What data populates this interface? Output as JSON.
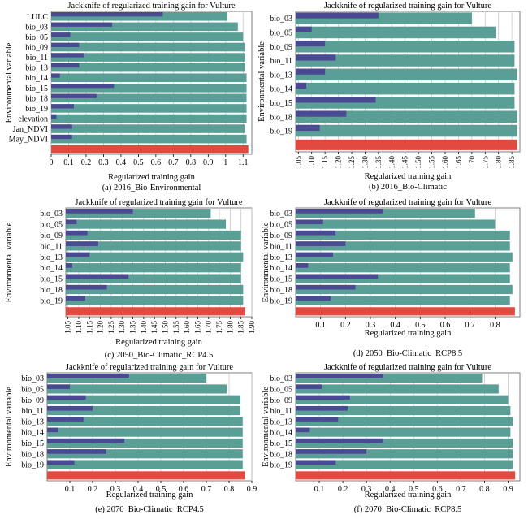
{
  "colors": {
    "without": "#4a4a92",
    "only": "#5a9f95",
    "all": "#e24a3f",
    "grid": "#c8c8c8",
    "frame": "#7f7f7f"
  },
  "chart_data": [
    {
      "type": "bar",
      "title": "Jackknife of regularized training gain for Vulture",
      "xlabel": "Regularized training gain",
      "ylabel": "Environmental variable",
      "caption": "(a) 2016_Bio-Environmental",
      "categories": [
        "LULC",
        "bio_03",
        "bio_05",
        "bio_09",
        "bio_11",
        "bio_13",
        "bio_14",
        "bio_15",
        "bio_18",
        "bio_19",
        "elevation",
        "Jan_NDVI",
        "May_NDVI"
      ],
      "xlim": [
        0,
        1.15
      ],
      "ticks": [
        0,
        0.1,
        0.2,
        0.3,
        0.4,
        0.5,
        0.6,
        0.7,
        0.8,
        0.9,
        1,
        1.1
      ],
      "tick_labels": [
        "0",
        "0.1",
        "0.2",
        "0.3",
        "0.4",
        "0.5",
        "0.6",
        "0.7",
        "0.8",
        "0.9",
        "1",
        "1.1"
      ],
      "rotate_ticks": false,
      "grid": true,
      "series": [
        {
          "key": "only",
          "values": [
            1.01,
            1.07,
            1.1,
            1.11,
            1.11,
            1.11,
            1.12,
            1.12,
            1.12,
            1.12,
            1.12,
            1.11,
            1.12
          ]
        },
        {
          "key": "without",
          "values": [
            0.64,
            0.35,
            0.11,
            0.16,
            0.19,
            0.16,
            0.05,
            0.36,
            0.26,
            0.13,
            0.03,
            0.12,
            0.12
          ]
        }
      ],
      "all": 1.13
    },
    {
      "type": "bar",
      "title": "Jackknife of regularized training gain for Vulture",
      "xlabel": "Regularized training gain",
      "ylabel": "Environmental variable",
      "caption": "(b) 2016_Bio-Climatic",
      "categories": [
        "bio_03",
        "bio_05",
        "bio_09",
        "bio_11",
        "bio_13",
        "bio_14",
        "bio_15",
        "bio_18",
        "bio_19"
      ],
      "xlim": [
        1.04,
        1.88
      ],
      "ticks": [
        1.05,
        1.1,
        1.15,
        1.2,
        1.25,
        1.3,
        1.35,
        1.4,
        1.45,
        1.5,
        1.55,
        1.6,
        1.65,
        1.7,
        1.75,
        1.8,
        1.85
      ],
      "tick_labels": [
        "1.05",
        "1.10",
        "1.15",
        "1.20",
        "1.25",
        "1.30",
        "1.35",
        "1.40",
        "1.45",
        "1.50",
        "1.55",
        "1.60",
        "1.65",
        "1.70",
        "1.75",
        "1.80",
        "1.85"
      ],
      "rotate_ticks": true,
      "grid": true,
      "series": [
        {
          "key": "only",
          "values": [
            1.7,
            1.79,
            1.86,
            1.86,
            1.87,
            1.86,
            1.86,
            1.87,
            1.87
          ]
        },
        {
          "key": "without",
          "values": [
            1.35,
            1.1,
            1.15,
            1.19,
            1.15,
            1.08,
            1.34,
            1.23,
            1.13
          ]
        }
      ],
      "all": 1.87
    },
    {
      "type": "bar",
      "title": "Jackknife of regularized training gain for Vulture",
      "xlabel": "Regularized training gain",
      "ylabel": "Environmental variable",
      "caption": "(c) 2050_Bio-Climatic_RCP4.5",
      "categories": [
        "bio_03",
        "bio_05",
        "bio_09",
        "bio_11",
        "bio_13",
        "bio_14",
        "bio_15",
        "bio_18",
        "bio_19"
      ],
      "xlim": [
        1.04,
        1.9
      ],
      "ticks": [
        1.05,
        1.1,
        1.15,
        1.2,
        1.25,
        1.3,
        1.35,
        1.4,
        1.45,
        1.5,
        1.55,
        1.6,
        1.65,
        1.7,
        1.75,
        1.8,
        1.85,
        1.9
      ],
      "tick_labels": [
        "1.05",
        "1.10",
        "1.15",
        "1.20",
        "1.25",
        "1.30",
        "1.35",
        "1.40",
        "1.45",
        "1.50",
        "1.55",
        "1.60",
        "1.65",
        "1.70",
        "1.75",
        "1.80",
        "1.85",
        "1.90"
      ],
      "rotate_ticks": true,
      "grid": true,
      "series": [
        {
          "key": "only",
          "values": [
            1.71,
            1.78,
            1.85,
            1.85,
            1.86,
            1.85,
            1.85,
            1.86,
            1.86
          ]
        },
        {
          "key": "without",
          "values": [
            1.35,
            1.09,
            1.14,
            1.19,
            1.15,
            1.07,
            1.33,
            1.23,
            1.13
          ]
        }
      ],
      "all": 1.87
    },
    {
      "type": "bar",
      "title": "Jackknife of regularized training gain for Vulture",
      "xlabel": "Regularized training gain",
      "ylabel": "Environmental variable",
      "caption": "(d) 2050_Bio-Climatic_RCP8.5",
      "categories": [
        "bio_03",
        "bio_05",
        "bio_09",
        "bio_11",
        "bio_13",
        "bio_14",
        "bio_15",
        "bio_18",
        "bio_19"
      ],
      "xlim": [
        0,
        0.9
      ],
      "ticks": [
        0.1,
        0.2,
        0.3,
        0.4,
        0.5,
        0.6,
        0.7,
        0.8
      ],
      "tick_labels": [
        "0.1",
        "0.2",
        "0.3",
        "0.4",
        "0.5",
        "0.6",
        "0.7",
        "0.8"
      ],
      "rotate_ticks": false,
      "grid": true,
      "series": [
        {
          "key": "only",
          "values": [
            0.72,
            0.8,
            0.86,
            0.86,
            0.87,
            0.86,
            0.86,
            0.87,
            0.86
          ]
        },
        {
          "key": "without",
          "values": [
            0.35,
            0.11,
            0.16,
            0.2,
            0.15,
            0.05,
            0.33,
            0.24,
            0.14
          ]
        }
      ],
      "all": 0.88
    },
    {
      "type": "bar",
      "title": "Jackknife of regularized training gain for Vulture",
      "xlabel": "Regularized training gain",
      "ylabel": "Environmental variable",
      "caption": "(e) 2070_Bio-Climatic_RCP4.5",
      "categories": [
        "bio_03",
        "bio_05",
        "bio_09",
        "bio_11",
        "bio_13",
        "bio_14",
        "bio_15",
        "bio_18",
        "bio_19"
      ],
      "xlim": [
        0,
        0.9
      ],
      "ticks": [
        0.1,
        0.2,
        0.3,
        0.4,
        0.5,
        0.6,
        0.7,
        0.8,
        0.9
      ],
      "tick_labels": [
        "0.1",
        "0.2",
        "0.3",
        "0.4",
        "0.5",
        "0.6",
        "0.7",
        "0.8",
        "0.9"
      ],
      "rotate_ticks": false,
      "grid": true,
      "series": [
        {
          "key": "only",
          "values": [
            0.7,
            0.79,
            0.85,
            0.85,
            0.86,
            0.86,
            0.86,
            0.86,
            0.86
          ]
        },
        {
          "key": "without",
          "values": [
            0.36,
            0.1,
            0.17,
            0.2,
            0.16,
            0.05,
            0.34,
            0.26,
            0.12
          ]
        }
      ],
      "all": 0.87
    },
    {
      "type": "bar",
      "title": "Jackknife of regularized training gain for Vulture",
      "xlabel": "Regularized training gain",
      "ylabel": "Environmental variable",
      "caption": "(f) 2070_Bio-Climatic_RCP8.5",
      "categories": [
        "bio_03",
        "bio_05",
        "bio_09",
        "bio_11",
        "bio_13",
        "bio_14",
        "bio_15",
        "bio_18",
        "bio_19"
      ],
      "xlim": [
        0,
        0.95
      ],
      "ticks": [
        0.1,
        0.2,
        0.3,
        0.4,
        0.5,
        0.6,
        0.7,
        0.8,
        0.9
      ],
      "tick_labels": [
        "0.1",
        "0.2",
        "0.3",
        "0.4",
        "0.5",
        "0.6",
        "0.7",
        "0.8",
        "0.9"
      ],
      "rotate_ticks": false,
      "grid": true,
      "series": [
        {
          "key": "only",
          "values": [
            0.79,
            0.86,
            0.9,
            0.91,
            0.92,
            0.91,
            0.92,
            0.92,
            0.92
          ]
        },
        {
          "key": "without",
          "values": [
            0.37,
            0.11,
            0.23,
            0.22,
            0.18,
            0.06,
            0.37,
            0.3,
            0.17
          ]
        }
      ],
      "all": 0.93
    }
  ]
}
